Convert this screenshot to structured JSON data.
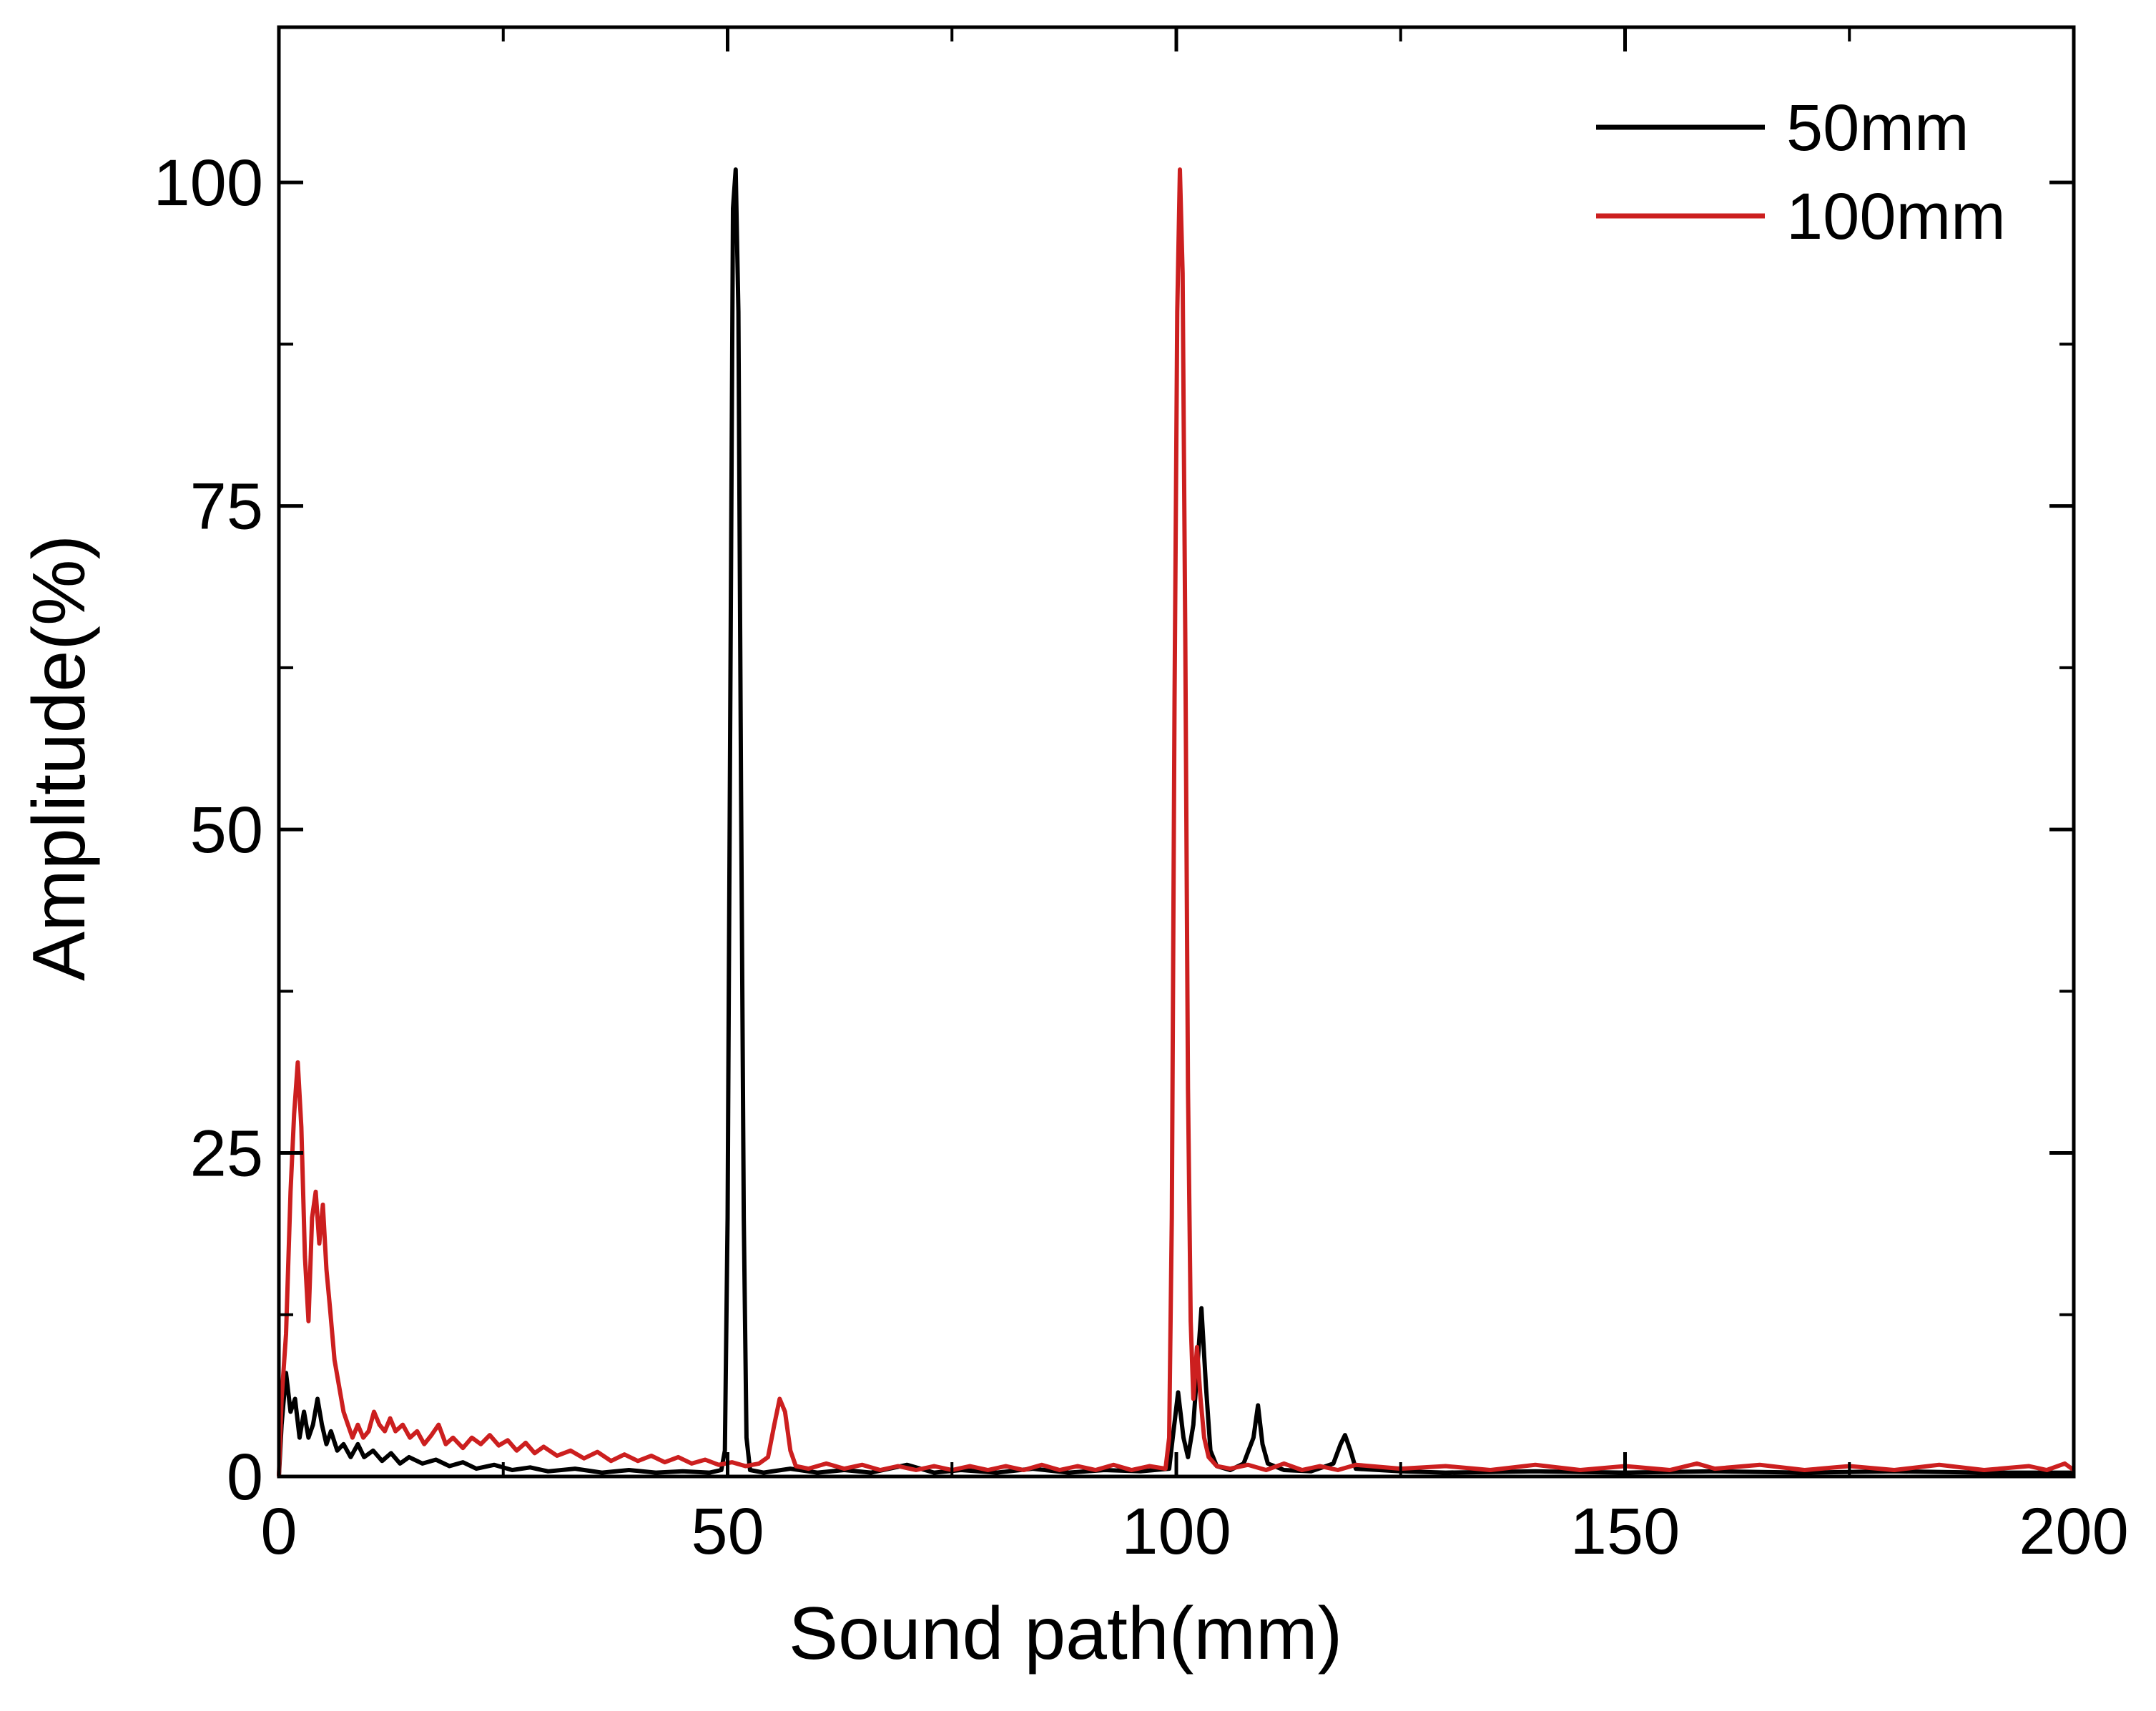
{
  "chart_data": {
    "type": "line",
    "title": "",
    "xlabel": "Sound path(mm)",
    "ylabel": "Amplitude(%)",
    "xlim": [
      0,
      200
    ],
    "ylim": [
      0,
      112
    ],
    "xticks": [
      0,
      50,
      100,
      150,
      200
    ],
    "yticks": [
      0,
      25,
      50,
      75,
      100
    ],
    "x_minor_step": 25,
    "y_minor_step": 12.5,
    "grid": false,
    "legend_position": "top-right",
    "series": [
      {
        "name": "50mm",
        "color": "#000000",
        "points": [
          [
            0,
            0
          ],
          [
            0.3,
            4
          ],
          [
            0.8,
            8
          ],
          [
            1.3,
            5
          ],
          [
            1.8,
            6
          ],
          [
            2.3,
            3
          ],
          [
            2.8,
            5
          ],
          [
            3.3,
            3
          ],
          [
            3.8,
            4
          ],
          [
            4.3,
            6
          ],
          [
            4.8,
            4
          ],
          [
            5.3,
            2.5
          ],
          [
            5.8,
            3.5
          ],
          [
            6.5,
            2
          ],
          [
            7.2,
            2.5
          ],
          [
            8,
            1.5
          ],
          [
            8.8,
            2.5
          ],
          [
            9.5,
            1.5
          ],
          [
            10.5,
            2
          ],
          [
            11.5,
            1.2
          ],
          [
            12.5,
            1.8
          ],
          [
            13.5,
            1
          ],
          [
            14.5,
            1.5
          ],
          [
            16,
            1
          ],
          [
            17.5,
            1.3
          ],
          [
            19,
            0.8
          ],
          [
            20.5,
            1.1
          ],
          [
            22,
            0.6
          ],
          [
            24,
            0.9
          ],
          [
            26,
            0.5
          ],
          [
            28,
            0.7
          ],
          [
            30,
            0.4
          ],
          [
            33,
            0.6
          ],
          [
            36,
            0.3
          ],
          [
            39,
            0.5
          ],
          [
            42,
            0.3
          ],
          [
            45,
            0.4
          ],
          [
            48,
            0.3
          ],
          [
            49.3,
            0.5
          ],
          [
            49.7,
            2
          ],
          [
            50.0,
            20
          ],
          [
            50.3,
            60
          ],
          [
            50.6,
            98
          ],
          [
            50.9,
            101
          ],
          [
            51.2,
            90
          ],
          [
            51.5,
            53
          ],
          [
            51.8,
            20
          ],
          [
            52.1,
            3
          ],
          [
            52.5,
            0.5
          ],
          [
            54,
            0.3
          ],
          [
            57,
            0.6
          ],
          [
            60,
            0.3
          ],
          [
            63,
            0.5
          ],
          [
            66,
            0.3
          ],
          [
            70,
            0.9
          ],
          [
            73,
            0.3
          ],
          [
            76,
            0.5
          ],
          [
            80,
            0.3
          ],
          [
            84,
            0.6
          ],
          [
            88,
            0.3
          ],
          [
            92,
            0.5
          ],
          [
            96,
            0.4
          ],
          [
            99.2,
            0.6
          ],
          [
            99.6,
            3
          ],
          [
            100.2,
            6.5
          ],
          [
            100.8,
            3
          ],
          [
            101.3,
            1.5
          ],
          [
            101.9,
            4
          ],
          [
            102.4,
            9
          ],
          [
            102.8,
            13
          ],
          [
            103.3,
            7
          ],
          [
            103.8,
            2
          ],
          [
            104.5,
            0.8
          ],
          [
            106,
            0.5
          ],
          [
            107.5,
            1
          ],
          [
            108.6,
            3
          ],
          [
            109.1,
            5.5
          ],
          [
            109.6,
            2.5
          ],
          [
            110.2,
            1
          ],
          [
            112,
            0.5
          ],
          [
            115,
            0.4
          ],
          [
            117.5,
            1
          ],
          [
            118.3,
            2.5
          ],
          [
            118.8,
            3.2
          ],
          [
            119.4,
            2
          ],
          [
            120,
            0.6
          ],
          [
            125,
            0.4
          ],
          [
            130,
            0.3
          ],
          [
            140,
            0.4
          ],
          [
            150,
            0.3
          ],
          [
            160,
            0.4
          ],
          [
            170,
            0.3
          ],
          [
            180,
            0.4
          ],
          [
            190,
            0.3
          ],
          [
            200,
            0.3
          ]
        ]
      },
      {
        "name": "100mm",
        "color": "#cc1f1f",
        "points": [
          [
            0,
            0
          ],
          [
            0.3,
            6
          ],
          [
            0.8,
            11
          ],
          [
            1.3,
            22
          ],
          [
            1.7,
            28
          ],
          [
            2.1,
            32
          ],
          [
            2.5,
            27
          ],
          [
            2.9,
            17
          ],
          [
            3.3,
            12
          ],
          [
            3.7,
            20
          ],
          [
            4.1,
            22
          ],
          [
            4.5,
            18
          ],
          [
            4.9,
            21
          ],
          [
            5.3,
            16
          ],
          [
            5.7,
            13
          ],
          [
            6.2,
            9
          ],
          [
            6.7,
            7
          ],
          [
            7.2,
            5
          ],
          [
            7.7,
            4
          ],
          [
            8.2,
            3
          ],
          [
            8.8,
            4
          ],
          [
            9.4,
            3
          ],
          [
            10,
            3.5
          ],
          [
            10.6,
            5
          ],
          [
            11.2,
            4
          ],
          [
            11.8,
            3.5
          ],
          [
            12.4,
            4.5
          ],
          [
            13,
            3.5
          ],
          [
            13.8,
            4
          ],
          [
            14.6,
            3
          ],
          [
            15.4,
            3.5
          ],
          [
            16.2,
            2.5
          ],
          [
            17,
            3.2
          ],
          [
            17.8,
            4
          ],
          [
            18.6,
            2.5
          ],
          [
            19.4,
            3
          ],
          [
            20.5,
            2.2
          ],
          [
            21.5,
            3
          ],
          [
            22.5,
            2.5
          ],
          [
            23.5,
            3.2
          ],
          [
            24.5,
            2.4
          ],
          [
            25.5,
            2.8
          ],
          [
            26.5,
            2
          ],
          [
            27.5,
            2.6
          ],
          [
            28.5,
            1.8
          ],
          [
            29.5,
            2.3
          ],
          [
            31,
            1.6
          ],
          [
            32.5,
            2
          ],
          [
            34,
            1.4
          ],
          [
            35.5,
            1.9
          ],
          [
            37,
            1.2
          ],
          [
            38.5,
            1.7
          ],
          [
            40,
            1.2
          ],
          [
            41.5,
            1.6
          ],
          [
            43,
            1.1
          ],
          [
            44.5,
            1.5
          ],
          [
            46,
            1
          ],
          [
            47.5,
            1.3
          ],
          [
            49,
            0.9
          ],
          [
            50.5,
            1.1
          ],
          [
            52,
            0.8
          ],
          [
            53.5,
            1
          ],
          [
            54.5,
            1.5
          ],
          [
            55.2,
            4
          ],
          [
            55.8,
            6
          ],
          [
            56.4,
            5
          ],
          [
            57,
            2
          ],
          [
            57.6,
            0.8
          ],
          [
            59,
            0.6
          ],
          [
            61,
            1
          ],
          [
            63,
            0.6
          ],
          [
            65,
            0.9
          ],
          [
            67,
            0.5
          ],
          [
            69,
            0.8
          ],
          [
            71,
            0.5
          ],
          [
            73,
            0.8
          ],
          [
            75,
            0.5
          ],
          [
            77,
            0.8
          ],
          [
            79,
            0.5
          ],
          [
            81,
            0.8
          ],
          [
            83,
            0.5
          ],
          [
            85,
            0.9
          ],
          [
            87,
            0.5
          ],
          [
            89,
            0.8
          ],
          [
            91,
            0.5
          ],
          [
            93,
            0.9
          ],
          [
            95,
            0.5
          ],
          [
            97,
            0.8
          ],
          [
            98.8,
            0.6
          ],
          [
            99.2,
            3
          ],
          [
            99.5,
            20
          ],
          [
            99.8,
            60
          ],
          [
            100.1,
            90
          ],
          [
            100.4,
            101
          ],
          [
            100.7,
            93
          ],
          [
            101.0,
            65
          ],
          [
            101.3,
            30
          ],
          [
            101.6,
            12
          ],
          [
            101.9,
            6
          ],
          [
            102.3,
            10
          ],
          [
            102.7,
            6
          ],
          [
            103.1,
            3
          ],
          [
            103.6,
            1.5
          ],
          [
            104.5,
            0.8
          ],
          [
            106,
            0.6
          ],
          [
            108,
            0.9
          ],
          [
            110,
            0.5
          ],
          [
            112,
            1
          ],
          [
            114,
            0.5
          ],
          [
            116,
            0.8
          ],
          [
            118,
            0.5
          ],
          [
            120,
            0.9
          ],
          [
            125,
            0.6
          ],
          [
            130,
            0.8
          ],
          [
            135,
            0.5
          ],
          [
            140,
            0.9
          ],
          [
            145,
            0.5
          ],
          [
            150,
            0.8
          ],
          [
            155,
            0.5
          ],
          [
            158,
            1
          ],
          [
            160,
            0.6
          ],
          [
            165,
            0.9
          ],
          [
            170,
            0.5
          ],
          [
            175,
            0.8
          ],
          [
            180,
            0.5
          ],
          [
            185,
            0.9
          ],
          [
            190,
            0.5
          ],
          [
            195,
            0.8
          ],
          [
            197,
            0.5
          ],
          [
            199,
            1
          ],
          [
            200,
            0.5
          ]
        ]
      }
    ]
  }
}
